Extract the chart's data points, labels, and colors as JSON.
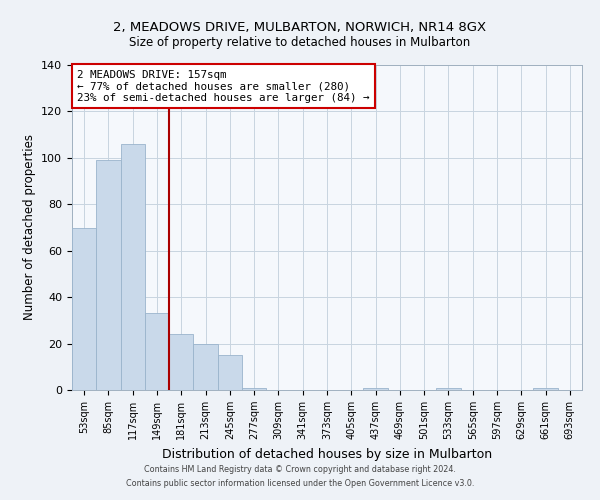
{
  "title": "2, MEADOWS DRIVE, MULBARTON, NORWICH, NR14 8GX",
  "subtitle": "Size of property relative to detached houses in Mulbarton",
  "xlabel": "Distribution of detached houses by size in Mulbarton",
  "ylabel": "Number of detached properties",
  "bar_labels": [
    "53sqm",
    "85sqm",
    "117sqm",
    "149sqm",
    "181sqm",
    "213sqm",
    "245sqm",
    "277sqm",
    "309sqm",
    "341sqm",
    "373sqm",
    "405sqm",
    "437sqm",
    "469sqm",
    "501sqm",
    "533sqm",
    "565sqm",
    "597sqm",
    "629sqm",
    "661sqm",
    "693sqm"
  ],
  "bar_values": [
    70,
    99,
    106,
    33,
    24,
    20,
    15,
    1,
    0,
    0,
    0,
    0,
    1,
    0,
    0,
    1,
    0,
    0,
    0,
    1,
    0
  ],
  "bar_color": "#c9d9ea",
  "bar_edge_color": "#9ab4cc",
  "marker_line_color": "#aa0000",
  "annotation_title": "2 MEADOWS DRIVE: 157sqm",
  "annotation_line1": "← 77% of detached houses are smaller (280)",
  "annotation_line2": "23% of semi-detached houses are larger (84) →",
  "annotation_box_color": "#ffffff",
  "annotation_box_edge": "#cc0000",
  "ylim": [
    0,
    140
  ],
  "yticks": [
    0,
    20,
    40,
    60,
    80,
    100,
    120,
    140
  ],
  "footer_line1": "Contains HM Land Registry data © Crown copyright and database right 2024.",
  "footer_line2": "Contains public sector information licensed under the Open Government Licence v3.0.",
  "background_color": "#eef2f7",
  "plot_bg_color": "#f5f8fc",
  "grid_color": "#c8d4e0"
}
